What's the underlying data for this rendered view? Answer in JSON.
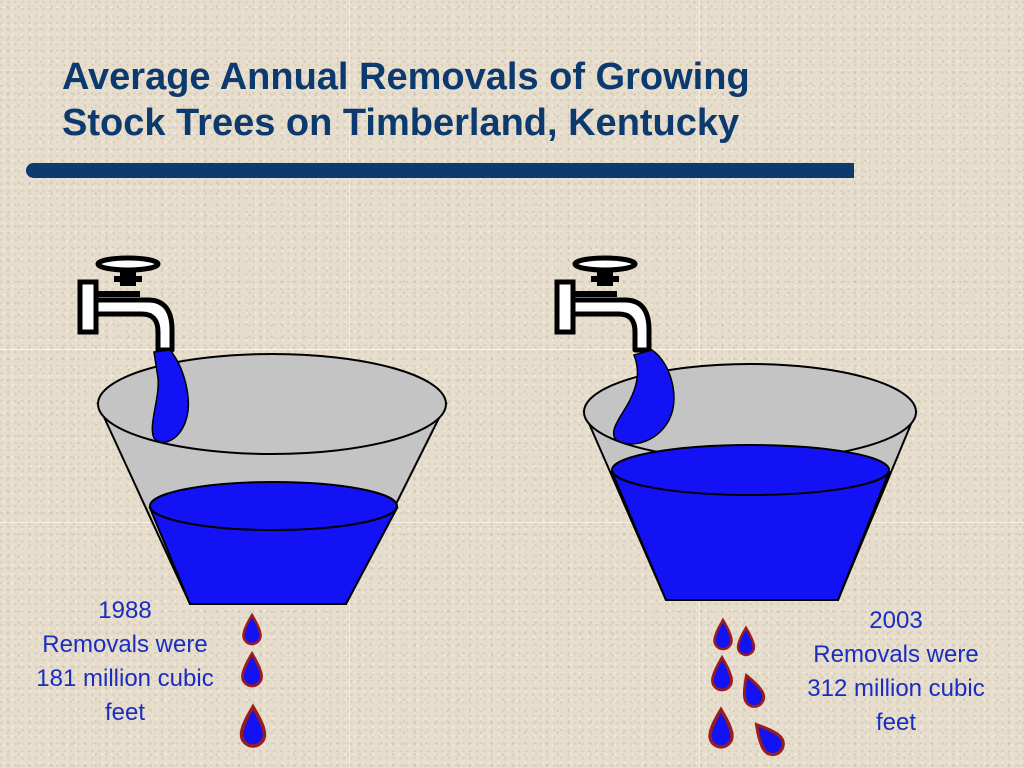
{
  "slide": {
    "title_line1": "Average Annual Removals of Growing",
    "title_line2": "Stock Trees on Timberland, Kentucky"
  },
  "panels": [
    {
      "year": "1988",
      "line2": "Removals were",
      "line3": "181 million cubic",
      "line4": "feet",
      "removals_million_cubic_feet": 181
    },
    {
      "year": "2003",
      "line2": "Removals were",
      "line3": "312 million cubic",
      "line4": "feet",
      "removals_million_cubic_feet": 312
    }
  ],
  "colors": {
    "title": "#0c3a6e",
    "water": "#1212f5",
    "caption": "#1a2dc0",
    "basin": "#c4c4c4"
  },
  "icons": [
    "faucet-icon",
    "water-stream-icon",
    "basin-icon",
    "water-drop-icon"
  ]
}
